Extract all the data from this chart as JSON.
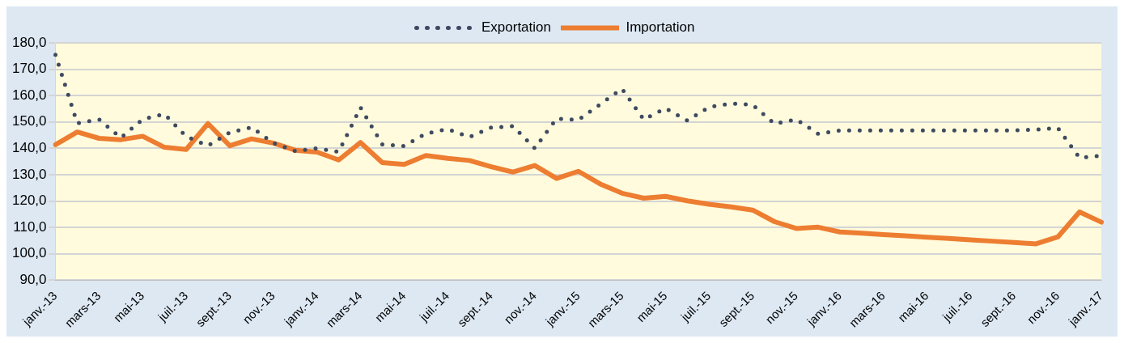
{
  "chart_data": {
    "type": "line",
    "categories": [
      "janv.-13",
      null,
      "mars-13",
      null,
      "mai-13",
      null,
      "juil.-13",
      null,
      "sept.-13",
      null,
      "nov.-13",
      null,
      "janv.-14",
      null,
      "mars-14",
      null,
      "mai-14",
      null,
      "juil.-14",
      null,
      "sept.-14",
      null,
      "nov.-14",
      null,
      "janv.-15",
      null,
      "mars-15",
      null,
      "mai-15",
      null,
      "juil.-15",
      null,
      "sept.-15",
      null,
      "nov.-15",
      null,
      "janv.-16",
      null,
      "mars-16",
      null,
      "mai-16",
      null,
      "juil.-16",
      null,
      "sept.-16",
      null,
      "nov.-16",
      null,
      "janv.-17"
    ],
    "series": [
      {
        "name": "Exportation",
        "color": "#3e4a61",
        "line_style": "dotted",
        "values": [
          175.5,
          149.5,
          151,
          144,
          151,
          153,
          144.5,
          141,
          146,
          148,
          142,
          139,
          140,
          138.7,
          155.5,
          141.5,
          140.9,
          145.6,
          147.3,
          144.3,
          147.9,
          148.4,
          140,
          151.3,
          150.8,
          156.7,
          162.6,
          150.9,
          155.2,
          150.5,
          155.7,
          157,
          156.5,
          149.3,
          151,
          145.5,
          146.8,
          146.8,
          146.8,
          146.8,
          146.8,
          146.8,
          146.8,
          146.8,
          146.8,
          147.1,
          147.8,
          136.4,
          137.2
        ]
      },
      {
        "name": "Importation",
        "color": "#ed7d31",
        "line_style": "solid",
        "values": [
          141.4,
          146.2,
          143.8,
          143.3,
          144.6,
          140.4,
          139.6,
          149.4,
          141,
          143.6,
          142,
          139.3,
          138.6,
          135.6,
          142.2,
          134.6,
          133.9,
          137.3,
          136.2,
          135.4,
          133,
          131,
          133.5,
          128.6,
          131.3,
          126.5,
          123,
          121.1,
          121.8,
          120.1,
          118.8,
          117.8,
          116.6,
          112.2,
          109.6,
          110.1,
          108.3,
          107.8,
          107.3,
          106.8,
          106.3,
          105.8,
          105.3,
          104.8,
          104.3,
          103.8,
          106.4,
          115.9,
          112
        ]
      }
    ],
    "ylim": [
      90,
      180
    ],
    "yticks": [
      {
        "value": 90,
        "label": "90,0"
      },
      {
        "value": 100,
        "label": "100,0"
      },
      {
        "value": 110,
        "label": "110,0"
      },
      {
        "value": 120,
        "label": "120,0"
      },
      {
        "value": 130,
        "label": "130,0"
      },
      {
        "value": 140,
        "label": "140,0"
      },
      {
        "value": 150,
        "label": "150,0"
      },
      {
        "value": 160,
        "label": "160,0"
      },
      {
        "value": 170,
        "label": "170,0"
      },
      {
        "value": 180,
        "label": "180,0"
      }
    ],
    "grid": "y",
    "legend": "top",
    "marker": "none"
  }
}
